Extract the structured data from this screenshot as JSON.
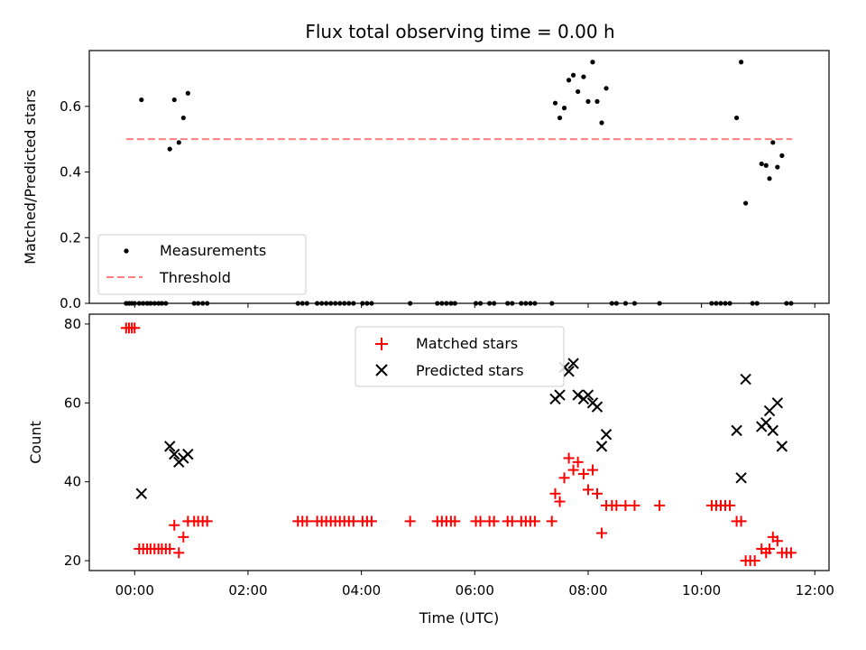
{
  "chart_data": [
    {
      "type": "scatter",
      "title": "Flux total observing time = 0.00 h",
      "xlabel": "",
      "ylabel": "Matched/Predicted stars",
      "xlim": [
        -0.8,
        12.25
      ],
      "ylim": [
        0,
        0.77
      ],
      "yticks": [
        0.0,
        0.2,
        0.4,
        0.6
      ],
      "ytick_labels": [
        "0.0",
        "0.2",
        "0.4",
        "0.6"
      ],
      "legend": {
        "position": "lower-left",
        "entries": [
          {
            "label": "Measurements",
            "marker": "dot",
            "color": "#000000"
          },
          {
            "label": "Threshold",
            "marker": "dashed-line",
            "color": "#ff7f7f"
          }
        ]
      },
      "threshold": {
        "value": 0.5,
        "x_start": -0.15,
        "x_end": 11.6,
        "color": "#ff7f7f"
      },
      "series": [
        {
          "name": "Measurements",
          "color": "#000000",
          "x": [
            0.12,
            0.62,
            0.7,
            0.78,
            0.86,
            0.94,
            7.42,
            7.5,
            7.58,
            7.66,
            7.74,
            7.82,
            7.92,
            8.0,
            8.08,
            8.16,
            8.24,
            8.32,
            10.62,
            10.7,
            10.78,
            11.06,
            11.14,
            11.2,
            11.26,
            11.34,
            11.42,
            -0.15,
            -0.1,
            -0.05,
            0.0,
            0.08,
            0.15,
            0.22,
            0.28,
            0.35,
            0.42,
            0.48,
            0.55,
            1.05,
            1.12,
            1.2,
            1.28,
            2.88,
            2.96,
            3.04,
            3.22,
            3.3,
            3.38,
            3.46,
            3.54,
            3.62,
            3.7,
            3.78,
            3.86,
            4.02,
            4.1,
            4.18,
            4.86,
            5.34,
            5.42,
            5.5,
            5.58,
            5.65,
            6.02,
            6.1,
            6.26,
            6.34,
            6.58,
            6.66,
            6.82,
            6.9,
            6.98,
            7.06,
            7.36,
            8.42,
            8.5,
            8.66,
            8.82,
            9.26,
            10.18,
            10.26,
            10.34,
            10.42,
            10.5,
            10.9,
            10.98,
            11.5,
            11.58
          ],
          "y": [
            0.62,
            0.47,
            0.62,
            0.49,
            0.565,
            0.64,
            0.61,
            0.565,
            0.595,
            0.68,
            0.695,
            0.645,
            0.69,
            0.615,
            0.735,
            0.615,
            0.55,
            0.655,
            0.565,
            0.735,
            0.305,
            0.425,
            0.42,
            0.38,
            0.49,
            0.415,
            0.45,
            0,
            0,
            0,
            0,
            0,
            0,
            0,
            0,
            0,
            0,
            0,
            0,
            0,
            0,
            0,
            0,
            0,
            0,
            0,
            0,
            0,
            0,
            0,
            0,
            0,
            0,
            0,
            0,
            0,
            0,
            0,
            0,
            0,
            0,
            0,
            0,
            0,
            0,
            0,
            0,
            0,
            0,
            0,
            0,
            0,
            0,
            0,
            0,
            0,
            0,
            0,
            0,
            0,
            0,
            0,
            0,
            0,
            0,
            0,
            0,
            0,
            0
          ]
        }
      ]
    },
    {
      "type": "scatter",
      "title": "",
      "xlabel": "Time (UTC)",
      "ylabel": "Count",
      "xlim": [
        -0.8,
        12.25
      ],
      "ylim": [
        17.5,
        82.5
      ],
      "xticks": [
        0,
        2,
        4,
        6,
        8,
        10,
        12
      ],
      "xtick_labels": [
        "00:00",
        "02:00",
        "04:00",
        "06:00",
        "08:00",
        "10:00",
        "12:00"
      ],
      "yticks": [
        20,
        40,
        60,
        80
      ],
      "ytick_labels": [
        "20",
        "40",
        "60",
        "80"
      ],
      "legend": {
        "position": "upper-center",
        "entries": [
          {
            "label": "Matched stars",
            "marker": "plus",
            "color": "#ff0000"
          },
          {
            "label": "Predicted stars",
            "marker": "x",
            "color": "#000000"
          }
        ]
      },
      "series": [
        {
          "name": "Matched stars",
          "color": "#ff0000",
          "x": [
            -0.15,
            -0.1,
            -0.05,
            0.0,
            0.08,
            0.15,
            0.22,
            0.28,
            0.35,
            0.42,
            0.48,
            0.55,
            0.62,
            0.7,
            0.78,
            0.86,
            0.94,
            1.05,
            1.12,
            1.2,
            1.28,
            2.88,
            2.96,
            3.04,
            3.22,
            3.3,
            3.38,
            3.46,
            3.54,
            3.62,
            3.7,
            3.78,
            3.86,
            4.02,
            4.1,
            4.18,
            4.86,
            5.34,
            5.42,
            5.5,
            5.58,
            5.65,
            6.02,
            6.1,
            6.26,
            6.34,
            6.58,
            6.66,
            6.82,
            6.9,
            6.98,
            7.06,
            7.36,
            7.42,
            7.5,
            7.58,
            7.66,
            7.74,
            7.82,
            7.92,
            8.0,
            8.08,
            8.16,
            8.24,
            8.32,
            8.42,
            8.5,
            8.66,
            8.82,
            9.26,
            10.18,
            10.26,
            10.34,
            10.42,
            10.5,
            10.62,
            10.7,
            10.78,
            10.86,
            10.94,
            11.06,
            11.14,
            11.2,
            11.26,
            11.34,
            11.42,
            11.5,
            11.58
          ],
          "y": [
            79,
            79,
            79,
            79,
            23,
            23,
            23,
            23,
            23,
            23,
            23,
            23,
            23,
            29,
            22,
            26,
            30,
            30,
            30,
            30,
            30,
            30,
            30,
            30,
            30,
            30,
            30,
            30,
            30,
            30,
            30,
            30,
            30,
            30,
            30,
            30,
            30,
            30,
            30,
            30,
            30,
            30,
            30,
            30,
            30,
            30,
            30,
            30,
            30,
            30,
            30,
            30,
            30,
            37,
            35,
            41,
            46,
            43,
            45,
            42,
            38,
            43,
            37,
            27,
            34,
            34,
            34,
            34,
            34,
            34,
            34,
            34,
            34,
            34,
            34,
            30,
            30,
            20,
            20,
            20,
            23,
            22,
            23,
            26,
            25,
            22,
            22,
            22
          ]
        },
        {
          "name": "Predicted stars",
          "color": "#000000",
          "x": [
            0.12,
            0.62,
            0.7,
            0.78,
            0.86,
            0.94,
            7.42,
            7.5,
            7.58,
            7.66,
            7.74,
            7.82,
            7.92,
            8.0,
            8.08,
            8.16,
            8.24,
            8.32,
            10.62,
            10.7,
            10.78,
            11.06,
            11.14,
            11.2,
            11.26,
            11.34,
            11.42
          ],
          "y": [
            37,
            49,
            47,
            45,
            46,
            47,
            61,
            62,
            69,
            68,
            70,
            62,
            61,
            62,
            60,
            59,
            49,
            52,
            53,
            41,
            66,
            54,
            55,
            58,
            53,
            60,
            49
          ]
        }
      ]
    }
  ]
}
